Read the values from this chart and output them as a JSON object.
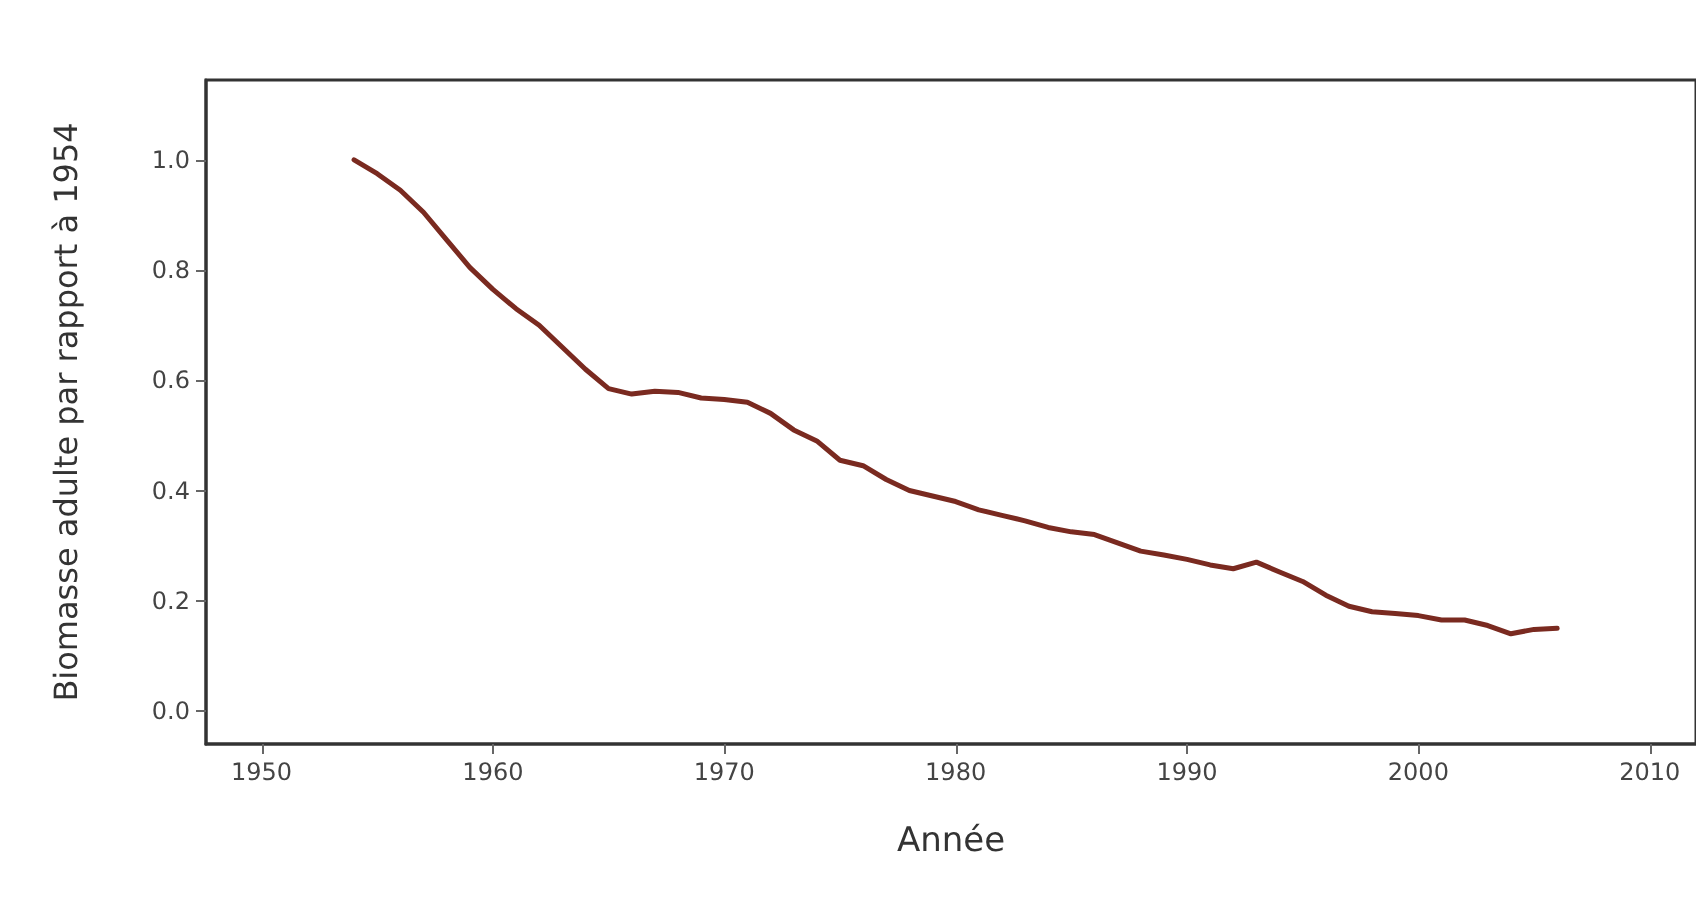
{
  "chart_data": {
    "type": "line",
    "xlabel": "Année",
    "ylabel": "Biomasse adulte par rapport à 1954",
    "x": [
      1954,
      1955,
      1956,
      1957,
      1958,
      1959,
      1960,
      1961,
      1962,
      1963,
      1964,
      1965,
      1966,
      1967,
      1968,
      1969,
      1970,
      1971,
      1972,
      1973,
      1974,
      1975,
      1976,
      1977,
      1978,
      1979,
      1980,
      1981,
      1982,
      1983,
      1984,
      1985,
      1986,
      1987,
      1988,
      1989,
      1990,
      1991,
      1992,
      1993,
      1994,
      1995,
      1996,
      1997,
      1998,
      1999,
      2000,
      2001,
      2002,
      2003,
      2004,
      2005,
      2006
    ],
    "series": [
      {
        "color": "#7a2a20",
        "values": [
          1.0,
          0.975,
          0.945,
          0.905,
          0.855,
          0.805,
          0.765,
          0.73,
          0.7,
          0.66,
          0.62,
          0.585,
          0.575,
          0.58,
          0.578,
          0.568,
          0.565,
          0.56,
          0.54,
          0.51,
          0.49,
          0.455,
          0.445,
          0.42,
          0.4,
          0.39,
          0.38,
          0.365,
          0.355,
          0.345,
          0.333,
          0.325,
          0.32,
          0.305,
          0.29,
          0.283,
          0.275,
          0.265,
          0.258,
          0.27,
          0.252,
          0.235,
          0.21,
          0.19,
          0.18,
          0.177,
          0.173,
          0.165,
          0.165,
          0.155,
          0.14,
          0.148,
          0.15
        ]
      }
    ],
    "xlim": [
      1947.6,
      2012
    ],
    "xticks": [
      1950,
      1960,
      1970,
      1980,
      1990,
      2000,
      2010
    ],
    "ylim": [
      -0.06,
      1.145
    ],
    "yticks": [
      {
        "value": 0,
        "label": "0.0"
      },
      0.2,
      0.4,
      0.6,
      0.8,
      {
        "value": 1,
        "label": "1.0"
      }
    ],
    "grid": false,
    "marker": "none",
    "line_style": "solid"
  }
}
